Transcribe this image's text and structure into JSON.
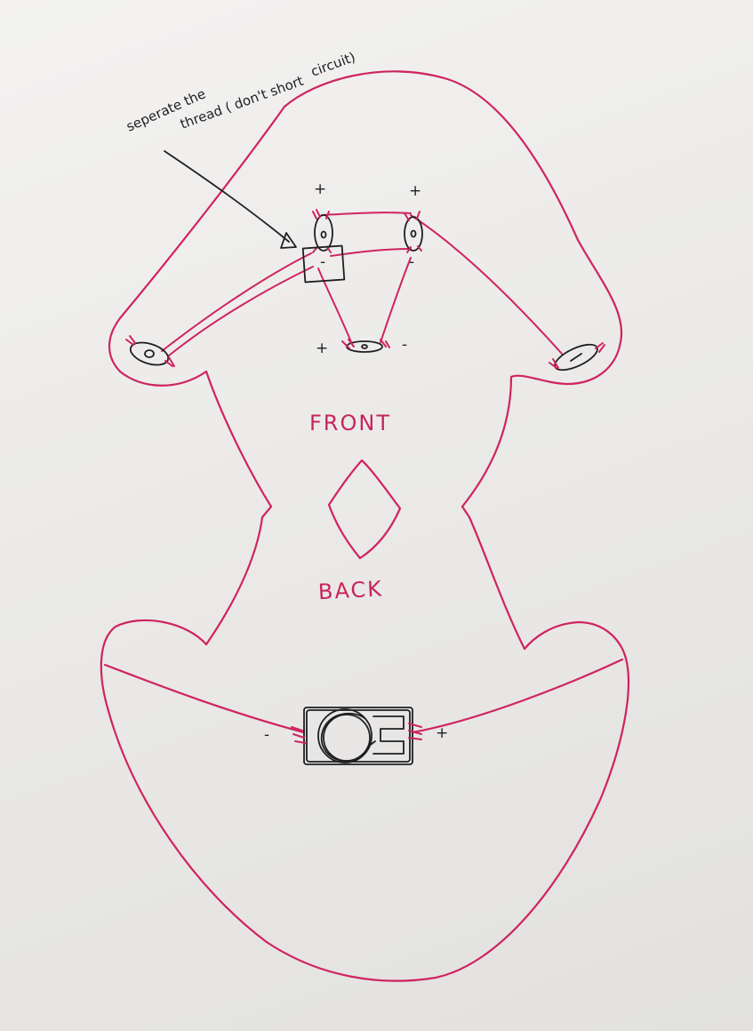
{
  "annotation": {
    "line1": "seperate the",
    "line2": "thread ( don't short",
    "line3": "circuit)"
  },
  "labels": {
    "front": "FRONT",
    "back": "BACK"
  },
  "polarity": {
    "plus": "+",
    "minus": "-"
  },
  "colors": {
    "outline": "#d0245f",
    "ink": "#1f1f22"
  }
}
